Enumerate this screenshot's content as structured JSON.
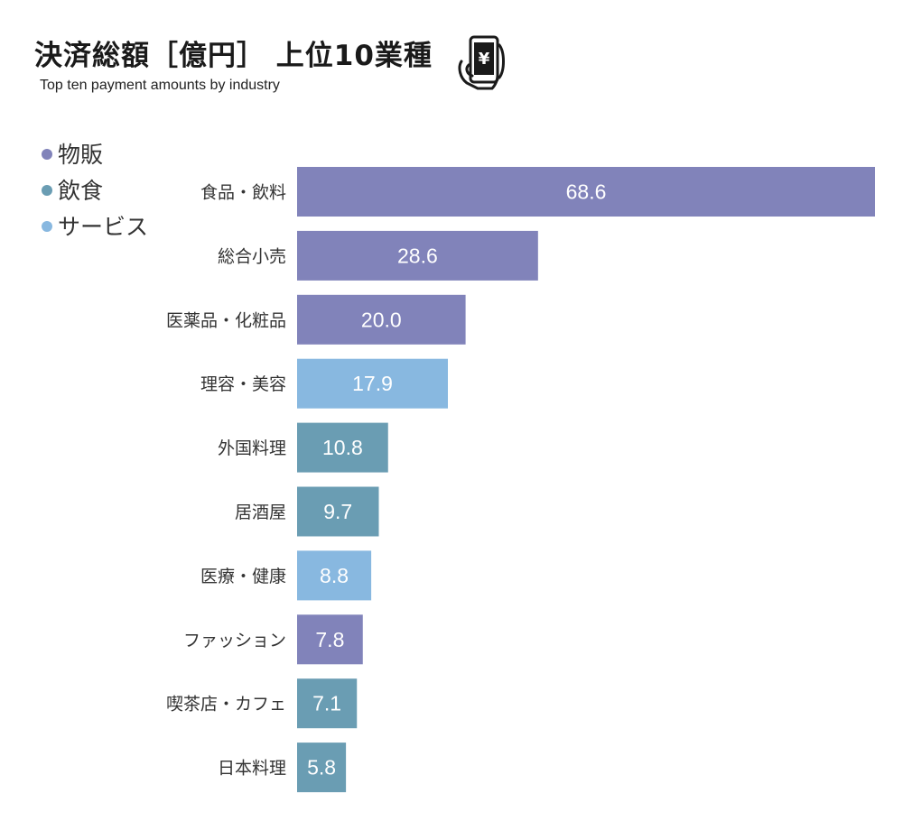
{
  "header": {
    "title": "決済総額［億円］ 上位10業種",
    "subtitle": "Top ten payment amounts by industry",
    "icon": "smartphone-yen-payment-icon"
  },
  "legend": [
    {
      "label": "物販",
      "color": "#8183ba"
    },
    {
      "label": "飲食",
      "color": "#6a9db3"
    },
    {
      "label": "サービス",
      "color": "#88b8e0"
    }
  ],
  "chart_data": {
    "type": "bar",
    "orientation": "horizontal",
    "categories": [
      "食品・飲料",
      "総合小売",
      "医薬品・化粧品",
      "理容・美容",
      "外国料理",
      "居酒屋",
      "医療・健康",
      "ファッション",
      "喫茶店・カフェ",
      "日本料理"
    ],
    "values": [
      68.6,
      28.6,
      20.0,
      17.9,
      10.8,
      9.7,
      8.8,
      7.8,
      7.1,
      5.8
    ],
    "value_labels": [
      "68.6",
      "28.6",
      "20.0",
      "17.9",
      "10.8",
      "9.7",
      "8.8",
      "7.8",
      "7.1",
      "5.8"
    ],
    "groups": [
      "物販",
      "物販",
      "物販",
      "サービス",
      "飲食",
      "飲食",
      "サービス",
      "物販",
      "飲食",
      "飲食"
    ],
    "colors": {
      "物販": "#8183ba",
      "飲食": "#6a9db3",
      "サービス": "#88b8e0"
    },
    "xlim": [
      0,
      68.6
    ],
    "grid": false,
    "legend_position": "top-left"
  }
}
